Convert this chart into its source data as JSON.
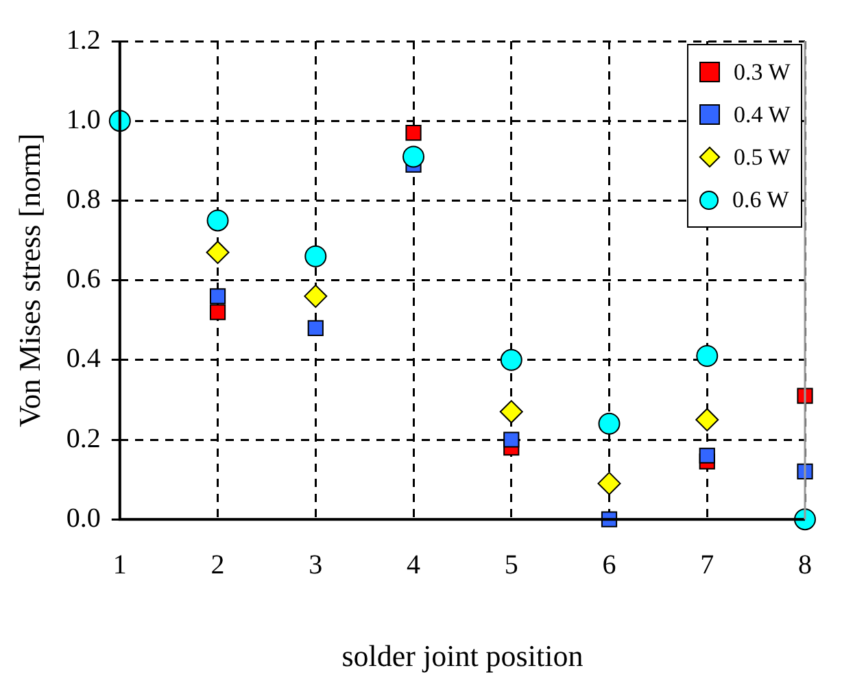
{
  "chart_data": {
    "type": "scatter",
    "xlabel": "solder joint position",
    "ylabel": "Von Mises stress [norm]",
    "x": [
      1,
      2,
      3,
      4,
      5,
      6,
      7,
      8
    ],
    "xlim": [
      1,
      8
    ],
    "xticks": [
      1,
      2,
      3,
      4,
      5,
      6,
      7,
      8
    ],
    "ylim": [
      0,
      1.2
    ],
    "yticks": [
      {
        "value": 0,
        "label": "0.0"
      },
      {
        "value": 0.2,
        "label": "0.2"
      },
      {
        "value": 0.4,
        "label": "0.4"
      },
      {
        "value": 0.6,
        "label": "0.6"
      },
      {
        "value": 0.8,
        "label": "0.8"
      },
      {
        "value": 1,
        "label": "1.0"
      },
      {
        "value": 1.2,
        "label": "1.2"
      }
    ],
    "grid": true,
    "legend": "top right",
    "series": [
      {
        "name": "0.3 W",
        "color": "#ff0000",
        "marker": "square",
        "values": [
          null,
          0.52,
          null,
          0.97,
          0.18,
          null,
          0.145,
          0.31
        ]
      },
      {
        "name": "0.4 W",
        "color": "#3366ff",
        "marker": "square",
        "values": [
          null,
          0.56,
          0.48,
          0.89,
          0.2,
          0.0,
          0.16,
          0.12
        ]
      },
      {
        "name": "0.5 W",
        "color": "#ffff00",
        "marker": "diamond",
        "values": [
          null,
          0.67,
          0.56,
          null,
          0.27,
          0.09,
          0.25,
          null
        ]
      },
      {
        "name": "0.6 W",
        "color": "#00ffff",
        "marker": "circle",
        "values": [
          1.0,
          0.75,
          0.66,
          0.91,
          0.4,
          0.24,
          0.41,
          0.0
        ]
      }
    ]
  }
}
